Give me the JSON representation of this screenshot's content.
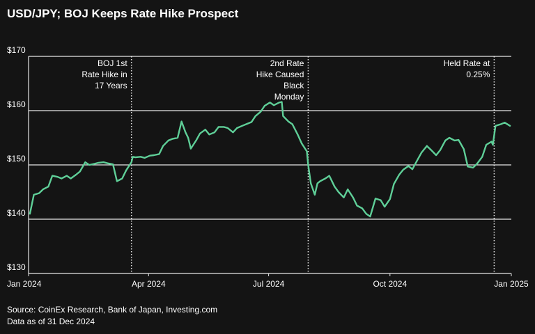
{
  "title": "USD/JPY; BOJ Keeps Rate Hike Prospect",
  "footer": {
    "source": "Source: CoinEx Research, Bank of Japan, Investing.com",
    "asof": "Data as of 31 Dec 2024"
  },
  "colors": {
    "background": "#141414",
    "line": "#5fcf98",
    "grid": "#e6e6e6",
    "text": "#ffffff"
  },
  "chart_data": {
    "type": "line",
    "title": "USD/JPY; BOJ Keeps Rate Hike Prospect",
    "xlabel": "",
    "ylabel": "",
    "xlim": [
      "2024-01-01",
      "2025-01-01"
    ],
    "ylim": [
      130,
      170
    ],
    "y_ticks": [
      130,
      140,
      150,
      160,
      170
    ],
    "y_tick_labels": [
      "$130",
      "$140",
      "$150",
      "$160",
      "$170"
    ],
    "x_ticks": [
      "2024-01-01",
      "2024-04-01",
      "2024-07-01",
      "2024-10-01",
      "2025-01-01"
    ],
    "x_tick_labels": [
      "Jan 2024",
      "Apr 2024",
      "Jul 2024",
      "Oct 2024",
      "Jan 2025"
    ],
    "grid": "horizontal",
    "series": [
      {
        "x": [
          "2024-01-02",
          "2024-01-05",
          "2024-01-09",
          "2024-01-12",
          "2024-01-16",
          "2024-01-19",
          "2024-01-23",
          "2024-01-26",
          "2024-01-30",
          "2024-02-02",
          "2024-02-06",
          "2024-02-09",
          "2024-02-13",
          "2024-02-16",
          "2024-02-20",
          "2024-02-23",
          "2024-02-27",
          "2024-03-01",
          "2024-03-05",
          "2024-03-08",
          "2024-03-12",
          "2024-03-15",
          "2024-03-19",
          "2024-03-20",
          "2024-03-22",
          "2024-03-26",
          "2024-03-29",
          "2024-04-02",
          "2024-04-05",
          "2024-04-09",
          "2024-04-12",
          "2024-04-16",
          "2024-04-19",
          "2024-04-23",
          "2024-04-26",
          "2024-04-29",
          "2024-05-01",
          "2024-05-03",
          "2024-05-07",
          "2024-05-10",
          "2024-05-14",
          "2024-05-17",
          "2024-05-21",
          "2024-05-24",
          "2024-05-28",
          "2024-05-31",
          "2024-06-04",
          "2024-06-07",
          "2024-06-11",
          "2024-06-14",
          "2024-06-18",
          "2024-06-21",
          "2024-06-25",
          "2024-06-28",
          "2024-07-02",
          "2024-07-05",
          "2024-07-09",
          "2024-07-11",
          "2024-07-12",
          "2024-07-16",
          "2024-07-19",
          "2024-07-23",
          "2024-07-26",
          "2024-07-30",
          "2024-07-31",
          "2024-08-02",
          "2024-08-05",
          "2024-08-07",
          "2024-08-09",
          "2024-08-13",
          "2024-08-16",
          "2024-08-20",
          "2024-08-23",
          "2024-08-27",
          "2024-08-30",
          "2024-09-03",
          "2024-09-06",
          "2024-09-10",
          "2024-09-13",
          "2024-09-16",
          "2024-09-20",
          "2024-09-24",
          "2024-09-27",
          "2024-10-01",
          "2024-10-04",
          "2024-10-08",
          "2024-10-11",
          "2024-10-15",
          "2024-10-18",
          "2024-10-22",
          "2024-10-25",
          "2024-10-29",
          "2024-11-01",
          "2024-11-05",
          "2024-11-08",
          "2024-11-12",
          "2024-11-15",
          "2024-11-19",
          "2024-11-22",
          "2024-11-26",
          "2024-11-29",
          "2024-12-03",
          "2024-12-06",
          "2024-12-10",
          "2024-12-13",
          "2024-12-17",
          "2024-12-18",
          "2024-12-20",
          "2024-12-24",
          "2024-12-27",
          "2024-12-31"
        ],
        "y": [
          141.0,
          144.5,
          144.8,
          145.5,
          146.0,
          148.0,
          147.8,
          147.5,
          148.0,
          147.5,
          148.2,
          148.8,
          150.5,
          150.0,
          150.2,
          150.4,
          150.5,
          150.3,
          150.1,
          147.0,
          147.5,
          149.0,
          150.5,
          151.5,
          151.4,
          151.5,
          151.3,
          151.7,
          151.8,
          152.0,
          153.5,
          154.5,
          154.8,
          155.0,
          158.0,
          156.0,
          155.0,
          153.0,
          154.5,
          155.8,
          156.5,
          155.6,
          156.0,
          157.0,
          157.0,
          156.8,
          156.0,
          156.8,
          157.2,
          157.5,
          157.9,
          159.0,
          159.8,
          160.9,
          161.5,
          161.0,
          161.5,
          161.6,
          159.0,
          158.0,
          157.5,
          155.6,
          154.0,
          152.5,
          150.0,
          146.6,
          144.5,
          146.6,
          147.0,
          147.5,
          148.0,
          146.0,
          145.0,
          144.0,
          145.5,
          144.0,
          142.5,
          142.0,
          141.0,
          140.5,
          143.8,
          143.5,
          142.3,
          143.7,
          146.5,
          148.2,
          149.1,
          149.8,
          149.2,
          151.0,
          152.3,
          153.5,
          152.8,
          151.8,
          152.7,
          154.5,
          155.0,
          154.5,
          154.6,
          152.9,
          149.7,
          149.5,
          150.2,
          151.5,
          153.7,
          154.3,
          153.7,
          157.2,
          157.5,
          157.8,
          157.2
        ]
      }
    ],
    "annotations": [
      {
        "x": "2024-03-19",
        "lines": [
          "BOJ 1st",
          "Rate Hike in",
          "17 Years"
        ]
      },
      {
        "x": "2024-07-31",
        "lines": [
          "2nd Rate",
          "Hike Caused",
          "Black",
          "Monday"
        ]
      },
      {
        "x": "2024-12-19",
        "lines": [
          "Held Rate at",
          "0.25%"
        ]
      }
    ]
  }
}
